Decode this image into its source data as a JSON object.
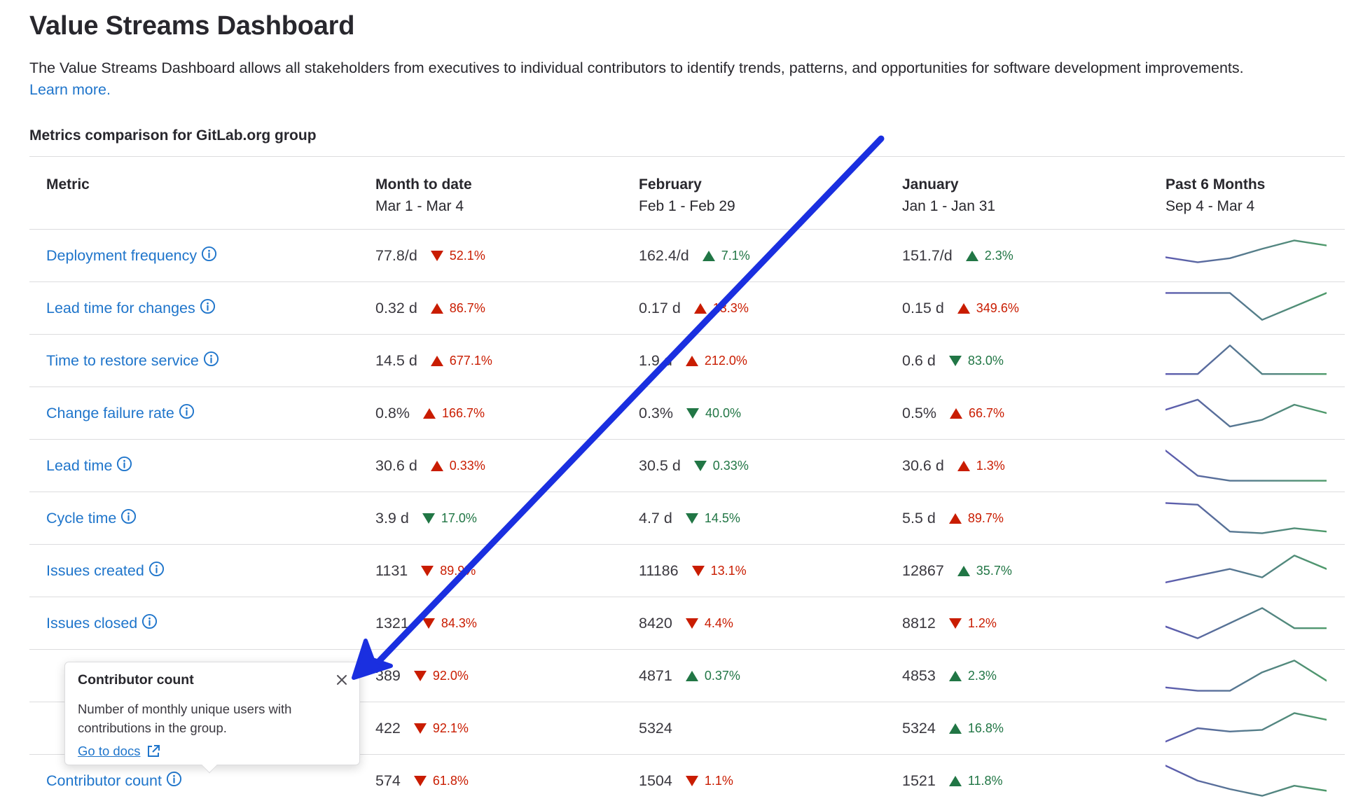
{
  "header": {
    "title": "Value Streams Dashboard",
    "description": "The Value Streams Dashboard allows all stakeholders from executives to individual contributors to identify trends, patterns, and opportunities for software development improvements.",
    "learn_more": "Learn more."
  },
  "section_title": "Metrics comparison for GitLab.org group",
  "columns": [
    {
      "label": "Metric",
      "range": ""
    },
    {
      "label": "Month to date",
      "range": "Mar 1 - Mar 4"
    },
    {
      "label": "February",
      "range": "Feb 1 - Feb 29"
    },
    {
      "label": "January",
      "range": "Jan 1 - Jan 31"
    },
    {
      "label": "Past 6 Months",
      "range": "Sep 4 - Mar 4"
    }
  ],
  "colors": {
    "link": "#1f75cb",
    "trend_bad": "#c91c00",
    "trend_good": "#217645",
    "spark_start": "#5d5bb0",
    "spark_end": "#4e9a6a",
    "annotation_arrow": "#1a2fe0"
  },
  "rows": [
    {
      "name": "Deployment frequency",
      "icon": "info-icon",
      "cells": [
        {
          "value": "77.8/d",
          "dir": "down",
          "tone": "bad",
          "pct": "52.1%"
        },
        {
          "value": "162.4/d",
          "dir": "up",
          "tone": "good",
          "pct": "7.1%"
        },
        {
          "value": "151.7/d",
          "dir": "up",
          "tone": "good",
          "pct": "2.3%"
        }
      ],
      "trend": [
        0.45,
        0.3,
        0.42,
        0.7,
        0.95,
        0.8
      ]
    },
    {
      "name": "Lead time for changes",
      "icon": "info-icon",
      "cells": [
        {
          "value": "0.32 d",
          "dir": "up",
          "tone": "bad",
          "pct": "86.7%"
        },
        {
          "value": "0.17 d",
          "dir": "up",
          "tone": "bad",
          "pct": "13.3%"
        },
        {
          "value": "0.15 d",
          "dir": "up",
          "tone": "bad",
          "pct": "349.6%"
        }
      ],
      "trend": [
        0.95,
        0.95,
        0.95,
        0.15,
        0.55,
        0.95
      ]
    },
    {
      "name": "Time to restore service",
      "icon": "info-icon",
      "cells": [
        {
          "value": "14.5 d",
          "dir": "up",
          "tone": "bad",
          "pct": "677.1%"
        },
        {
          "value": "1.9 d",
          "dir": "up",
          "tone": "bad",
          "pct": "212.0%"
        },
        {
          "value": "0.6 d",
          "dir": "down",
          "tone": "good",
          "pct": "83.0%"
        }
      ],
      "trend": [
        0.1,
        0.1,
        0.95,
        0.1,
        0.1,
        0.1
      ]
    },
    {
      "name": "Change failure rate",
      "icon": "info-icon",
      "cells": [
        {
          "value": "0.8%",
          "dir": "up",
          "tone": "bad",
          "pct": "166.7%"
        },
        {
          "value": "0.3%",
          "dir": "down",
          "tone": "good",
          "pct": "40.0%"
        },
        {
          "value": "0.5%",
          "dir": "up",
          "tone": "bad",
          "pct": "66.7%"
        }
      ],
      "trend": [
        0.6,
        0.9,
        0.1,
        0.3,
        0.75,
        0.5
      ]
    },
    {
      "name": "Lead time",
      "icon": "info-icon",
      "cells": [
        {
          "value": "30.6 d",
          "dir": "up",
          "tone": "bad",
          "pct": "0.33%"
        },
        {
          "value": "30.5 d",
          "dir": "down",
          "tone": "good",
          "pct": "0.33%"
        },
        {
          "value": "30.6 d",
          "dir": "up",
          "tone": "bad",
          "pct": "1.3%"
        }
      ],
      "trend": [
        0.95,
        0.2,
        0.05,
        0.05,
        0.05,
        0.05
      ]
    },
    {
      "name": "Cycle time",
      "icon": "info-icon",
      "cells": [
        {
          "value": "3.9 d",
          "dir": "down",
          "tone": "good",
          "pct": "17.0%"
        },
        {
          "value": "4.7 d",
          "dir": "down",
          "tone": "good",
          "pct": "14.5%"
        },
        {
          "value": "5.5 d",
          "dir": "up",
          "tone": "bad",
          "pct": "89.7%"
        }
      ],
      "trend": [
        0.95,
        0.9,
        0.1,
        0.05,
        0.2,
        0.1
      ]
    },
    {
      "name": "Issues created",
      "icon": "info-icon",
      "cells": [
        {
          "value": "1131",
          "dir": "down",
          "tone": "bad",
          "pct": "89.9%"
        },
        {
          "value": "11186",
          "dir": "down",
          "tone": "bad",
          "pct": "13.1%"
        },
        {
          "value": "12867",
          "dir": "up",
          "tone": "good",
          "pct": "35.7%"
        }
      ],
      "trend": [
        0.15,
        0.35,
        0.55,
        0.3,
        0.95,
        0.55
      ]
    },
    {
      "name": "Issues closed",
      "icon": "info-icon",
      "cells": [
        {
          "value": "1321",
          "dir": "down",
          "tone": "bad",
          "pct": "84.3%"
        },
        {
          "value": "8420",
          "dir": "down",
          "tone": "bad",
          "pct": "4.4%"
        },
        {
          "value": "8812",
          "dir": "down",
          "tone": "bad",
          "pct": "1.2%"
        }
      ],
      "trend": [
        0.4,
        0.05,
        0.5,
        0.95,
        0.35,
        0.35
      ]
    },
    {
      "name": "",
      "icon": "",
      "cells": [
        {
          "value": "389",
          "dir": "down",
          "tone": "bad",
          "pct": "92.0%"
        },
        {
          "value": "4871",
          "dir": "up",
          "tone": "good",
          "pct": "0.37%"
        },
        {
          "value": "4853",
          "dir": "up",
          "tone": "good",
          "pct": "2.3%"
        }
      ],
      "trend": [
        0.15,
        0.05,
        0.05,
        0.6,
        0.95,
        0.35
      ]
    },
    {
      "name": "",
      "icon": "",
      "cells": [
        {
          "value": "422",
          "dir": "down",
          "tone": "bad",
          "pct": "92.1%"
        },
        {
          "value": "5324",
          "dir": "",
          "tone": "",
          "pct": ""
        },
        {
          "value": "5324",
          "dir": "up",
          "tone": "good",
          "pct": "16.8%"
        }
      ],
      "trend": [
        0.1,
        0.5,
        0.4,
        0.45,
        0.95,
        0.75
      ]
    },
    {
      "name": "Contributor count",
      "icon": "info-icon",
      "cells": [
        {
          "value": "574",
          "dir": "down",
          "tone": "bad",
          "pct": "61.8%"
        },
        {
          "value": "1504",
          "dir": "down",
          "tone": "bad",
          "pct": "1.1%"
        },
        {
          "value": "1521",
          "dir": "up",
          "tone": "good",
          "pct": "11.8%"
        }
      ],
      "trend": [
        0.95,
        0.5,
        0.25,
        0.05,
        0.35,
        0.2
      ]
    }
  ],
  "popover": {
    "title": "Contributor count",
    "body": "Number of monthly unique users with contributions in the group.",
    "link": "Go to docs",
    "close_icon": "close-icon",
    "link_icon": "external-link-icon"
  }
}
